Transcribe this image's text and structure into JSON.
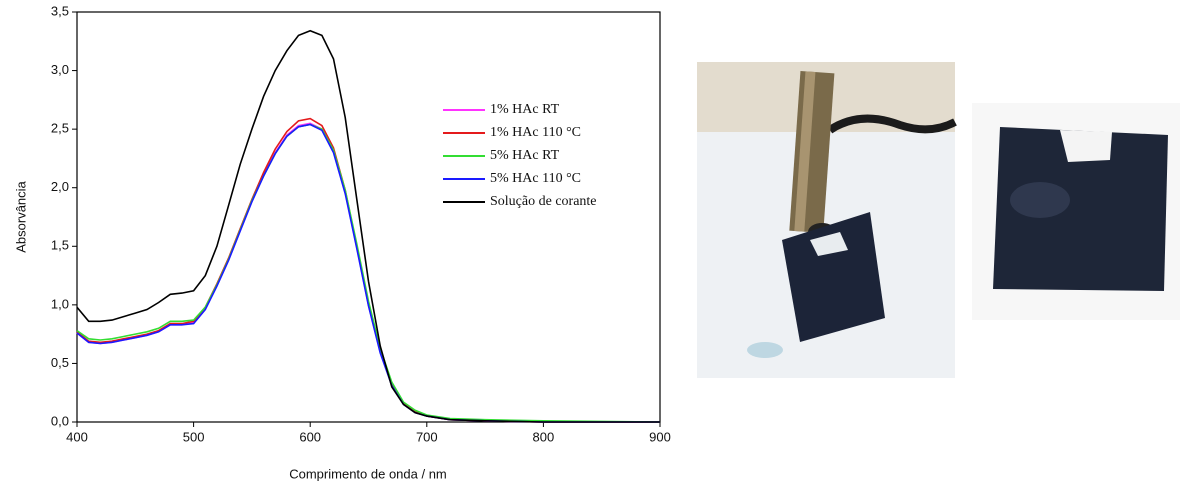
{
  "chart_data": {
    "type": "line",
    "x_label": "Comprimento de onda / nm",
    "y_label": "Absorvância",
    "x": [
      400,
      410,
      420,
      430,
      440,
      450,
      460,
      470,
      480,
      490,
      500,
      510,
      520,
      530,
      540,
      550,
      560,
      570,
      580,
      590,
      600,
      610,
      620,
      630,
      640,
      650,
      660,
      670,
      680,
      690,
      700,
      720,
      750,
      800,
      900
    ],
    "series": [
      {
        "name": "1% HAc RT",
        "color": "#ff33ff",
        "values": [
          0.76,
          0.68,
          0.67,
          0.68,
          0.7,
          0.72,
          0.74,
          0.77,
          0.83,
          0.83,
          0.85,
          0.97,
          1.17,
          1.39,
          1.64,
          1.89,
          2.11,
          2.3,
          2.45,
          2.53,
          2.55,
          2.5,
          2.31,
          1.96,
          1.49,
          1.0,
          0.6,
          0.32,
          0.16,
          0.09,
          0.05,
          0.02,
          0.01,
          0,
          0
        ]
      },
      {
        "name": "1% HAc 110 °C",
        "color": "#e41a1c",
        "values": [
          0.77,
          0.69,
          0.68,
          0.69,
          0.71,
          0.73,
          0.75,
          0.78,
          0.84,
          0.84,
          0.86,
          0.98,
          1.18,
          1.4,
          1.65,
          1.9,
          2.13,
          2.33,
          2.48,
          2.57,
          2.59,
          2.53,
          2.34,
          1.98,
          1.5,
          1.0,
          0.6,
          0.32,
          0.16,
          0.09,
          0.05,
          0.02,
          0.01,
          0,
          0
        ]
      },
      {
        "name": "5% HAc RT",
        "color": "#33dd33",
        "values": [
          0.78,
          0.71,
          0.7,
          0.71,
          0.73,
          0.75,
          0.77,
          0.8,
          0.86,
          0.86,
          0.87,
          0.98,
          1.17,
          1.39,
          1.64,
          1.89,
          2.1,
          2.29,
          2.44,
          2.52,
          2.54,
          2.5,
          2.32,
          1.98,
          1.52,
          1.03,
          0.63,
          0.34,
          0.17,
          0.1,
          0.06,
          0.03,
          0.02,
          0.01,
          0
        ]
      },
      {
        "name": "5% HAc 110 °C",
        "color": "#1a1aff",
        "values": [
          0.76,
          0.68,
          0.67,
          0.68,
          0.7,
          0.72,
          0.74,
          0.77,
          0.83,
          0.83,
          0.84,
          0.96,
          1.16,
          1.38,
          1.63,
          1.88,
          2.1,
          2.29,
          2.44,
          2.52,
          2.54,
          2.49,
          2.3,
          1.95,
          1.48,
          0.99,
          0.59,
          0.31,
          0.15,
          0.08,
          0.05,
          0.02,
          0.01,
          0,
          0
        ]
      },
      {
        "name": "Solução de corante",
        "color": "#000000",
        "values": [
          0.98,
          0.86,
          0.86,
          0.87,
          0.9,
          0.93,
          0.96,
          1.02,
          1.09,
          1.1,
          1.12,
          1.25,
          1.5,
          1.85,
          2.2,
          2.5,
          2.78,
          3.0,
          3.17,
          3.3,
          3.34,
          3.3,
          3.1,
          2.6,
          1.9,
          1.2,
          0.65,
          0.3,
          0.15,
          0.08,
          0.05,
          0.02,
          0.01,
          0,
          0
        ]
      }
    ],
    "xlim": [
      400,
      900
    ],
    "xticks": [
      400,
      500,
      600,
      700,
      800,
      900
    ],
    "ylim": [
      0,
      3.5
    ],
    "yticks": [
      {
        "value": 0,
        "label": "0,0"
      },
      {
        "value": 0.5,
        "label": "0,5"
      },
      {
        "value": 1,
        "label": "1,0"
      },
      {
        "value": 1.5,
        "label": "1,5"
      },
      {
        "value": 2,
        "label": "2,0"
      },
      {
        "value": 2.5,
        "label": "2,5"
      },
      {
        "value": 3,
        "label": "3,0"
      },
      {
        "value": 3.5,
        "label": "3,5"
      }
    ],
    "legend": "upper-right"
  }
}
